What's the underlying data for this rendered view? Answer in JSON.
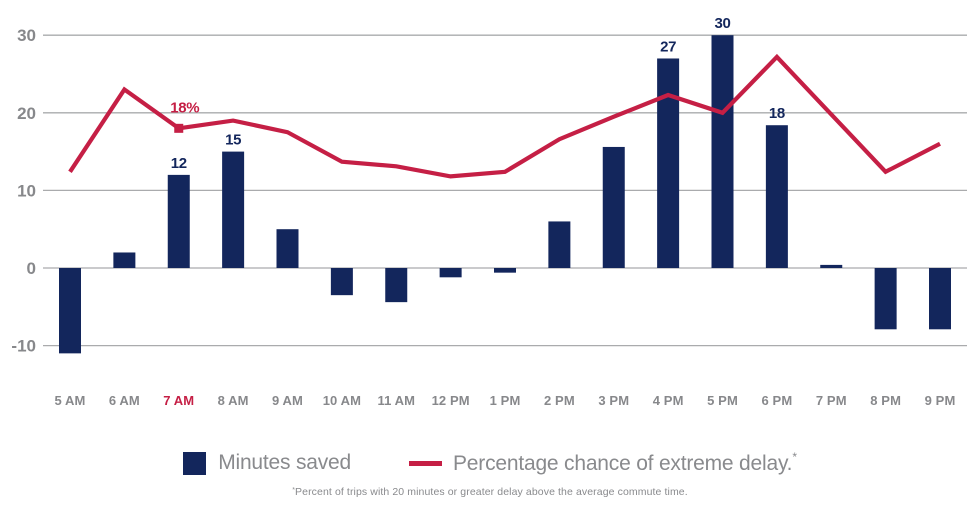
{
  "colors": {
    "bar": "#13265c",
    "line": "#c51f45",
    "grid": "#aaabad",
    "axis_text": "#87888b",
    "highlight_text": "#c51f45",
    "background": "#ffffff"
  },
  "chart_data": {
    "type": "combo-bar-line",
    "categories": [
      "5 AM",
      "6 AM",
      "7 AM",
      "8 AM",
      "9 AM",
      "10 AM",
      "11 AM",
      "12 PM",
      "1 PM",
      "2 PM",
      "3 PM",
      "4 PM",
      "5 PM",
      "6 PM",
      "7 PM",
      "8 PM",
      "9 PM"
    ],
    "highlighted_category_index": 2,
    "yticks": [
      30,
      20,
      10,
      0,
      -10
    ],
    "ylim": [
      -13.5,
      32
    ],
    "grid": "horizontal",
    "legend_position": "bottom",
    "series": [
      {
        "name": "Minutes saved",
        "type": "bar",
        "values": [
          -11,
          2,
          12,
          15,
          5,
          -3.5,
          -4.4,
          -1.2,
          -0.6,
          6,
          15.6,
          27,
          30,
          18.4,
          0.4,
          -7.9,
          -7.9
        ],
        "value_labels": [
          null,
          null,
          "12",
          "15",
          null,
          null,
          null,
          null,
          null,
          null,
          null,
          "27",
          "30",
          "18",
          null,
          null,
          null
        ]
      },
      {
        "name": "Percentage chance of extreme delay.*",
        "type": "line",
        "values": [
          12.4,
          23,
          18,
          19,
          17.5,
          13.7,
          13.1,
          11.8,
          12.4,
          16.6,
          19.5,
          22.3,
          20,
          27.2,
          19.8,
          12.4,
          16
        ],
        "marker": {
          "index": 2,
          "label": "18%"
        }
      }
    ]
  },
  "legend": {
    "bar_label": "Minutes saved",
    "line_label": "Percentage chance of extreme delay.",
    "line_label_sup": "*"
  },
  "footnote": {
    "sup": "*",
    "text": "Percent of trips with 20 minutes or greater delay above the average commute time."
  }
}
